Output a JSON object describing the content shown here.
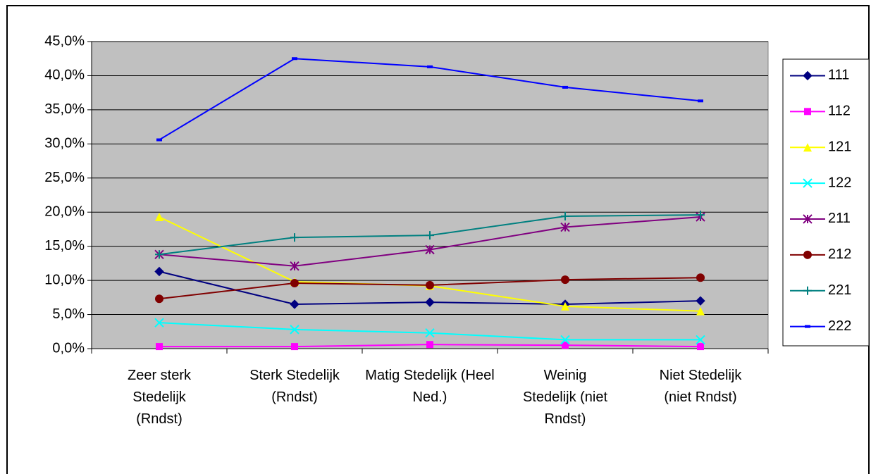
{
  "chart_data": {
    "type": "line",
    "categories": [
      "Zeer sterk Stedelijk (Rndst)",
      "Sterk Stedelijk (Rndst)",
      "Matig Stedelijk (Heel Ned.)",
      "Weinig Stedelijk (niet Rndst)",
      "Niet Stedelijk (niet Rndst)"
    ],
    "series": [
      {
        "name": "111",
        "color": "#000080",
        "marker": "diamond",
        "values": [
          11.3,
          6.5,
          6.8,
          6.5,
          7.0
        ]
      },
      {
        "name": "112",
        "color": "#ff00ff",
        "marker": "square",
        "values": [
          0.3,
          0.3,
          0.6,
          0.5,
          0.3
        ]
      },
      {
        "name": "121",
        "color": "#ffff00",
        "marker": "triangle",
        "values": [
          19.3,
          9.8,
          9.2,
          6.2,
          5.5
        ]
      },
      {
        "name": "122",
        "color": "#00ffff",
        "marker": "x",
        "values": [
          3.8,
          2.8,
          2.3,
          1.3,
          1.3
        ]
      },
      {
        "name": "211",
        "color": "#800080",
        "marker": "star",
        "values": [
          13.8,
          12.1,
          14.5,
          17.8,
          19.3
        ]
      },
      {
        "name": "212",
        "color": "#800000",
        "marker": "circle",
        "values": [
          7.3,
          9.6,
          9.3,
          10.1,
          10.4
        ]
      },
      {
        "name": "221",
        "color": "#008080",
        "marker": "plus",
        "values": [
          13.8,
          16.3,
          16.6,
          19.4,
          19.6
        ]
      },
      {
        "name": "222",
        "color": "#0000ff",
        "marker": "dash",
        "values": [
          30.6,
          42.5,
          41.3,
          38.3,
          36.3
        ]
      }
    ],
    "ylim": [
      0,
      45
    ],
    "yticks": [
      {
        "value": 0,
        "label": "0,0%"
      },
      {
        "value": 5,
        "label": "5,0%"
      },
      {
        "value": 10,
        "label": "10,0%"
      },
      {
        "value": 15,
        "label": "15,0%"
      },
      {
        "value": 20,
        "label": "20,0%"
      },
      {
        "value": 25,
        "label": "25,0%"
      },
      {
        "value": 30,
        "label": "30,0%"
      },
      {
        "value": 35,
        "label": "35,0%"
      },
      {
        "value": 40,
        "label": "40,0%"
      },
      {
        "value": 45,
        "label": "45,0%"
      }
    ],
    "grid": true,
    "legend": "right",
    "plot_background": "#c0c0c0"
  }
}
